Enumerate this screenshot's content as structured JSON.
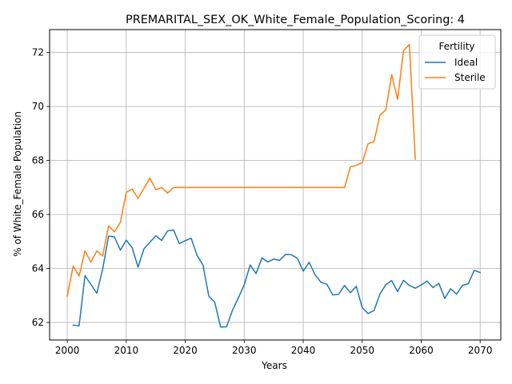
{
  "chart_data": {
    "type": "line",
    "title": "PREMARITAL_SEX_OK_White_Female_Population_Scoring: 4",
    "xlabel": "Years",
    "ylabel": "% of White_Female Population",
    "xlim": [
      1997,
      2073.5
    ],
    "ylim": [
      61.35,
      72.85
    ],
    "xticks": [
      2000,
      2010,
      2020,
      2030,
      2040,
      2050,
      2060,
      2070
    ],
    "yticks": [
      62,
      64,
      66,
      68,
      70,
      72
    ],
    "grid": true,
    "legend": {
      "title": "Fertility",
      "placement": "top-right"
    },
    "series": [
      {
        "name": "Ideal",
        "color": "#1f77b4",
        "x": [
          2001,
          2002,
          2003,
          2004,
          2005,
          2006,
          2007,
          2008,
          2009,
          2010,
          2011,
          2012,
          2013,
          2014,
          2015,
          2016,
          2017,
          2018,
          2019,
          2020,
          2021,
          2022,
          2023,
          2024,
          2025,
          2026,
          2027,
          2028,
          2029,
          2030,
          2031,
          2032,
          2033,
          2034,
          2035,
          2036,
          2037,
          2038,
          2039,
          2040,
          2041,
          2042,
          2043,
          2044,
          2045,
          2046,
          2047,
          2048,
          2049,
          2050,
          2051,
          2052,
          2053,
          2054,
          2055,
          2056,
          2057,
          2058,
          2059,
          2060,
          2061,
          2062,
          2063,
          2064,
          2065,
          2066,
          2067,
          2068,
          2069,
          2070
        ],
        "values": [
          61.9,
          61.88,
          63.73,
          63.41,
          63.08,
          63.98,
          65.2,
          65.17,
          64.68,
          65.05,
          64.77,
          64.05,
          64.73,
          64.97,
          65.21,
          65.04,
          65.39,
          65.43,
          64.92,
          65.03,
          65.12,
          64.49,
          64.13,
          62.97,
          62.75,
          61.83,
          61.84,
          62.45,
          62.91,
          63.39,
          64.13,
          63.81,
          64.39,
          64.24,
          64.35,
          64.3,
          64.52,
          64.51,
          64.38,
          63.9,
          64.23,
          63.77,
          63.49,
          63.42,
          63.02,
          63.04,
          63.37,
          63.1,
          63.34,
          62.55,
          62.33,
          62.44,
          63.05,
          63.4,
          63.55,
          63.14,
          63.56,
          63.37,
          63.27,
          63.39,
          63.53,
          63.29,
          63.45,
          62.89,
          63.25,
          63.05,
          63.37,
          63.44,
          63.93,
          63.85
        ]
      },
      {
        "name": "Sterile",
        "color": "#ff7f0e",
        "x": [
          2000,
          2001,
          2002,
          2003,
          2004,
          2005,
          2006,
          2007,
          2008,
          2009,
          2010,
          2011,
          2012,
          2013,
          2014,
          2015,
          2016,
          2017,
          2018,
          2019,
          2020,
          2021,
          2022,
          2023,
          2024,
          2025,
          2026,
          2027,
          2028,
          2029,
          2030,
          2031,
          2032,
          2033,
          2034,
          2035,
          2036,
          2037,
          2038,
          2039,
          2040,
          2041,
          2042,
          2043,
          2044,
          2045,
          2046,
          2047,
          2048,
          2049,
          2050,
          2051,
          2052,
          2053,
          2054,
          2055,
          2056,
          2057,
          2058,
          2059
        ],
        "values": [
          62.98,
          64.09,
          63.72,
          64.65,
          64.23,
          64.65,
          64.46,
          65.58,
          65.36,
          65.71,
          66.82,
          66.94,
          66.6,
          66.97,
          67.35,
          66.92,
          67.0,
          66.79,
          67.0,
          67.0,
          67.0,
          67.0,
          67.0,
          67.0,
          67.0,
          67.0,
          67.0,
          67.0,
          67.0,
          67.0,
          67.0,
          67.0,
          67.0,
          67.0,
          67.0,
          67.0,
          67.0,
          67.0,
          67.0,
          67.0,
          67.0,
          67.0,
          67.0,
          67.0,
          67.0,
          67.0,
          67.0,
          67.0,
          67.76,
          67.82,
          67.92,
          68.62,
          68.7,
          69.67,
          69.88,
          71.18,
          70.27,
          72.06,
          72.3,
          68.05
        ]
      }
    ]
  }
}
